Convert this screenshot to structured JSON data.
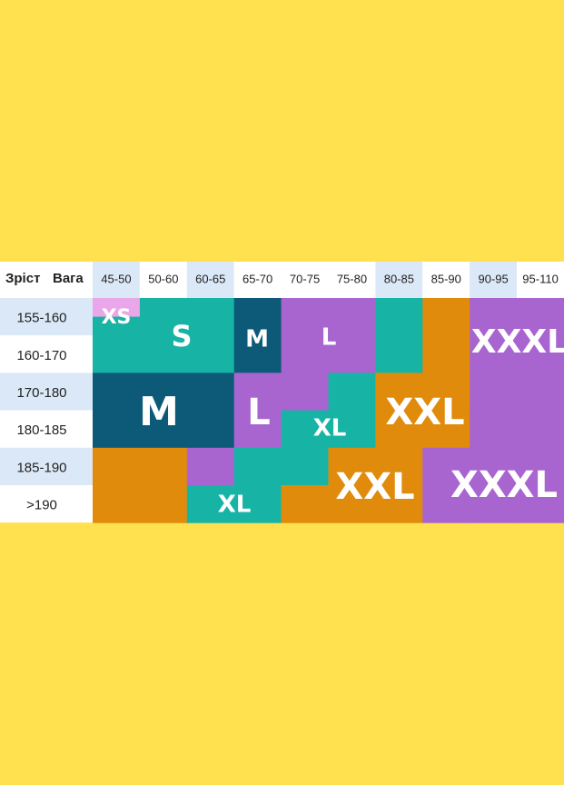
{
  "table": {
    "corner": [
      "Зріст",
      "Вага"
    ],
    "weights": [
      "45-50",
      "50-60",
      "60-65",
      "65-70",
      "70-75",
      "75-80",
      "80-85",
      "85-90",
      "90-95",
      "95-110"
    ],
    "heights": [
      "155-160",
      "160-170",
      "170-180",
      "180-185",
      "185-190",
      ">190"
    ]
  },
  "sizes": [
    "XS",
    "S",
    "M",
    "L",
    "XXXL",
    "M",
    "L",
    "XL",
    "XXL",
    "XXL",
    "XXXL",
    "XL"
  ]
}
